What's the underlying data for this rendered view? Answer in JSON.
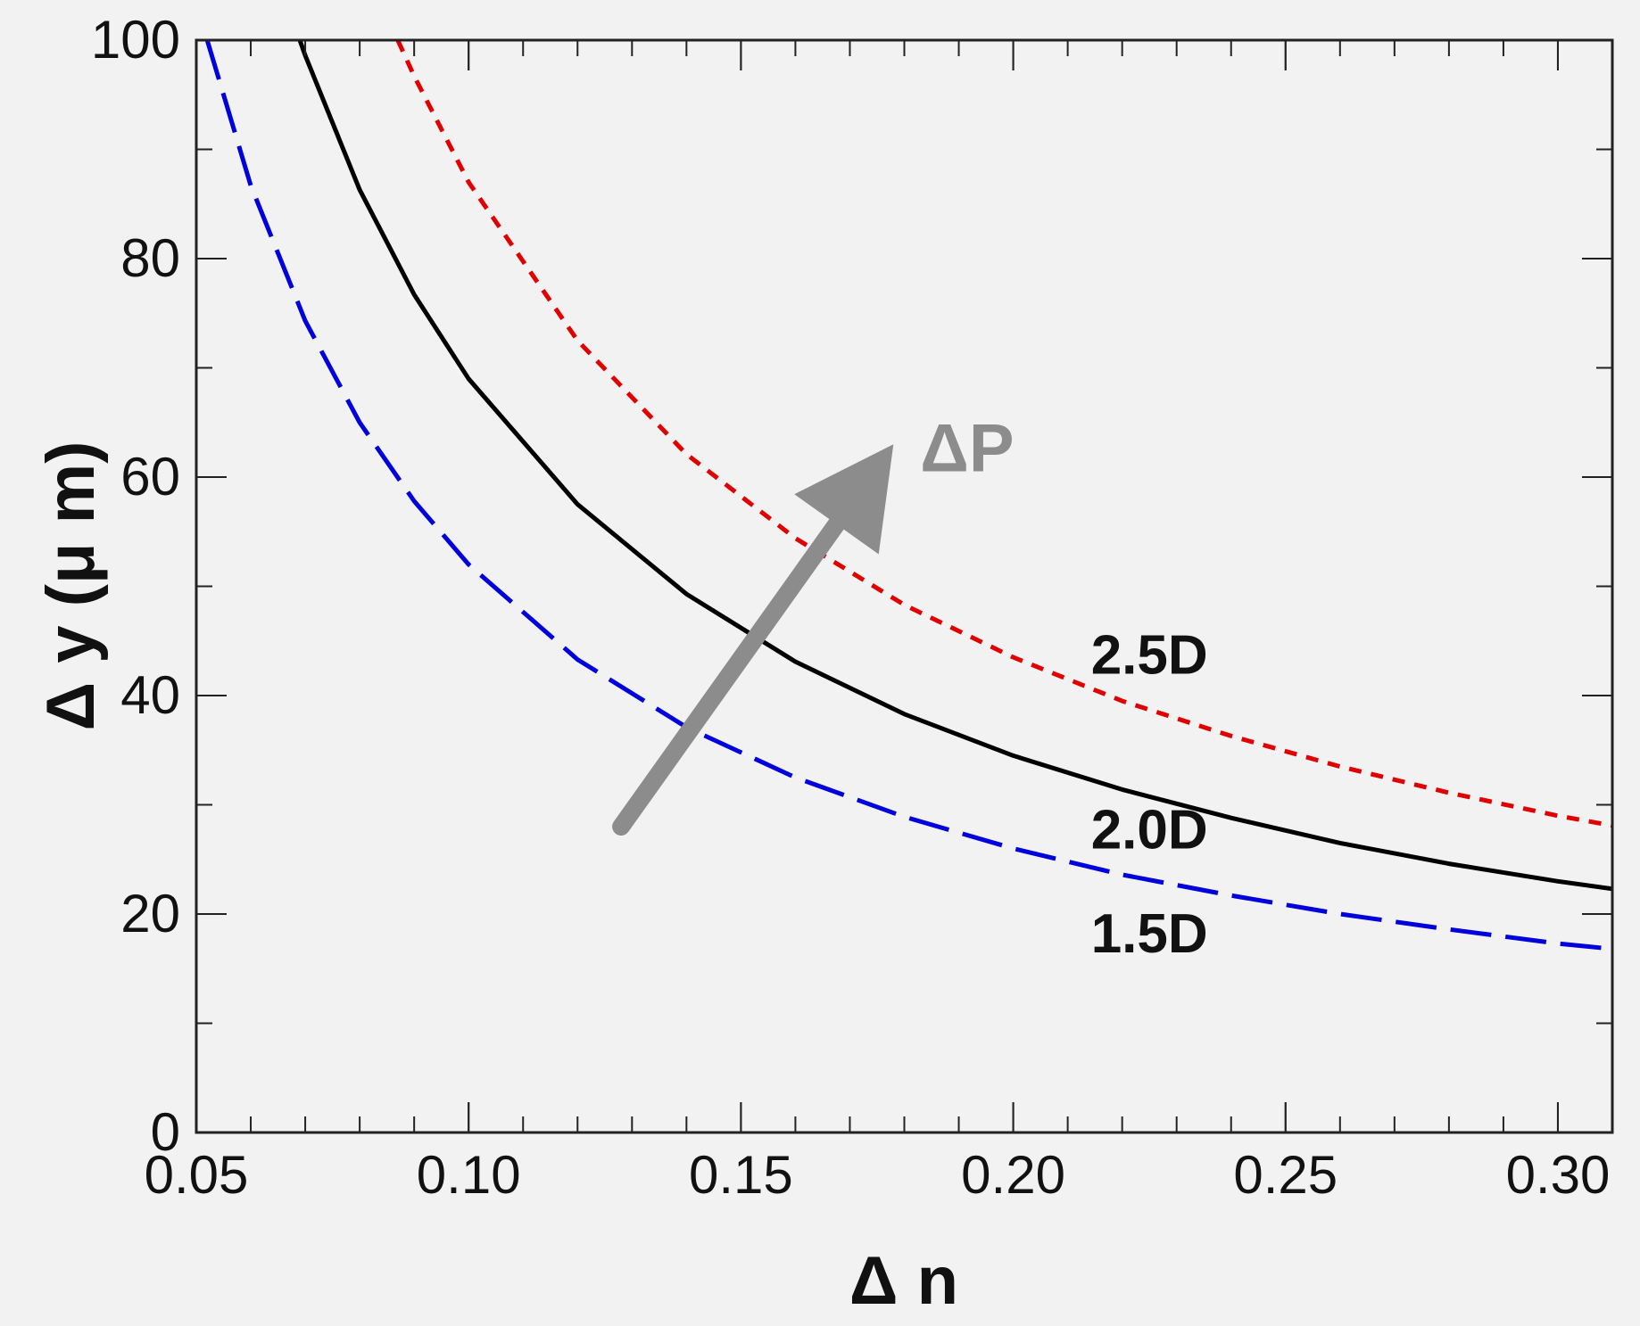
{
  "chart_data": {
    "type": "line",
    "xlabel": "Δ n",
    "ylabel": "Δ y (μ m)",
    "xlim": [
      0.05,
      0.31
    ],
    "ylim": [
      0,
      100
    ],
    "x_ticks": [
      "0.05",
      "0.10",
      "0.15",
      "0.20",
      "0.25",
      "0.30"
    ],
    "y_ticks": [
      "0",
      "20",
      "40",
      "60",
      "80",
      "100"
    ],
    "grid": false,
    "legend": "none",
    "series": [
      {
        "name": "1.5D",
        "color": "#0000dd",
        "style": "long-dash",
        "x": [
          0.052,
          0.06,
          0.07,
          0.08,
          0.09,
          0.1,
          0.12,
          0.14,
          0.16,
          0.18,
          0.2,
          0.22,
          0.24,
          0.26,
          0.28,
          0.3,
          0.31
        ],
        "y": [
          100,
          86.7,
          74.3,
          65.0,
          57.8,
          52.0,
          43.3,
          37.1,
          32.5,
          28.9,
          26.0,
          23.6,
          21.7,
          20.0,
          18.6,
          17.3,
          16.8
        ]
      },
      {
        "name": "2.0D",
        "color": "#000000",
        "style": "solid",
        "x": [
          0.069,
          0.07,
          0.08,
          0.09,
          0.1,
          0.12,
          0.14,
          0.16,
          0.18,
          0.2,
          0.22,
          0.24,
          0.26,
          0.28,
          0.3,
          0.31
        ],
        "y": [
          100,
          98.6,
          86.3,
          76.7,
          69.0,
          57.5,
          49.3,
          43.1,
          38.3,
          34.5,
          31.4,
          28.8,
          26.5,
          24.6,
          23.0,
          22.3
        ]
      },
      {
        "name": "2.5D",
        "color": "#e00000",
        "style": "short-dash",
        "x": [
          0.087,
          0.09,
          0.1,
          0.12,
          0.14,
          0.16,
          0.18,
          0.2,
          0.22,
          0.24,
          0.26,
          0.28,
          0.3,
          0.31
        ],
        "y": [
          100,
          96.7,
          87.0,
          72.5,
          62.1,
          54.4,
          48.3,
          43.5,
          39.5,
          36.3,
          33.5,
          31.1,
          29.0,
          28.1
        ]
      }
    ],
    "annotations": [
      {
        "text": "ΔP",
        "kind": "arrow",
        "color": "#8c8c8c",
        "from": {
          "x": 0.128,
          "y": 28
        },
        "to": {
          "x": 0.178,
          "y": 63
        }
      }
    ]
  }
}
